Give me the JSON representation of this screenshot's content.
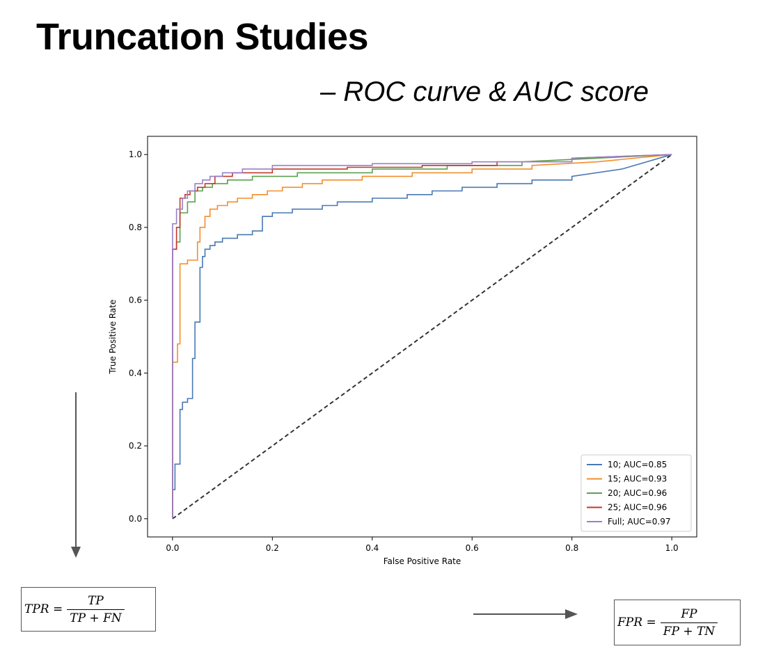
{
  "slide": {
    "title": "Truncation Studies",
    "subtitle": "– ROC curve & AUC score"
  },
  "formulas": {
    "tpr": {
      "lhs": "TPR =",
      "numerator": "TP",
      "denominator": "TP + FN"
    },
    "fpr": {
      "lhs": "FPR =",
      "numerator": "FP",
      "denominator": "FP + TN"
    }
  },
  "chart_data": {
    "type": "line",
    "title": "",
    "xlabel": "False Positive Rate",
    "ylabel": "True Positive Rate",
    "xlim": [
      -0.05,
      1.05
    ],
    "ylim": [
      -0.05,
      1.05
    ],
    "xticks": [
      0.0,
      0.2,
      0.4,
      0.6,
      0.8,
      1.0
    ],
    "yticks": [
      0.0,
      0.2,
      0.4,
      0.6,
      0.8,
      1.0
    ],
    "xtick_labels": [
      "0.0",
      "0.2",
      "0.4",
      "0.6",
      "0.8",
      "1.0"
    ],
    "ytick_labels": [
      "0.0",
      "0.2",
      "0.4",
      "0.6",
      "0.8",
      "1.0"
    ],
    "grid": false,
    "legend_position": "lower-right",
    "diagonal": {
      "x": [
        0,
        1
      ],
      "y": [
        0,
        1
      ],
      "color": "#333333",
      "style": "dashed"
    },
    "series": [
      {
        "name": "10; AUC=0.85",
        "color": "#4878b4",
        "x": [
          0,
          0,
          0.005,
          0.005,
          0.015,
          0.015,
          0.02,
          0.02,
          0.03,
          0.03,
          0.04,
          0.04,
          0.045,
          0.045,
          0.055,
          0.055,
          0.06,
          0.06,
          0.065,
          0.065,
          0.075,
          0.075,
          0.085,
          0.085,
          0.1,
          0.1,
          0.13,
          0.13,
          0.16,
          0.16,
          0.18,
          0.18,
          0.2,
          0.2,
          0.24,
          0.24,
          0.3,
          0.3,
          0.33,
          0.33,
          0.4,
          0.4,
          0.47,
          0.47,
          0.52,
          0.52,
          0.58,
          0.58,
          0.65,
          0.65,
          0.72,
          0.72,
          0.8,
          0.8,
          0.9,
          1.0
        ],
        "y": [
          0,
          0.08,
          0.08,
          0.15,
          0.15,
          0.3,
          0.3,
          0.32,
          0.32,
          0.33,
          0.33,
          0.44,
          0.44,
          0.54,
          0.54,
          0.69,
          0.69,
          0.72,
          0.72,
          0.74,
          0.74,
          0.75,
          0.75,
          0.76,
          0.76,
          0.77,
          0.77,
          0.78,
          0.78,
          0.79,
          0.79,
          0.83,
          0.83,
          0.84,
          0.84,
          0.85,
          0.85,
          0.86,
          0.86,
          0.87,
          0.87,
          0.88,
          0.88,
          0.89,
          0.89,
          0.9,
          0.9,
          0.91,
          0.91,
          0.92,
          0.92,
          0.93,
          0.93,
          0.94,
          0.96,
          1.0
        ]
      },
      {
        "name": "15; AUC=0.93",
        "color": "#f28e2b",
        "x": [
          0,
          0,
          0.01,
          0.01,
          0.015,
          0.015,
          0.03,
          0.03,
          0.05,
          0.05,
          0.055,
          0.055,
          0.065,
          0.065,
          0.075,
          0.075,
          0.09,
          0.09,
          0.11,
          0.11,
          0.13,
          0.13,
          0.16,
          0.16,
          0.19,
          0.19,
          0.22,
          0.22,
          0.26,
          0.26,
          0.3,
          0.3,
          0.38,
          0.38,
          0.48,
          0.48,
          0.6,
          0.6,
          0.72,
          0.72,
          0.85,
          1.0
        ],
        "y": [
          0,
          0.43,
          0.43,
          0.48,
          0.48,
          0.7,
          0.7,
          0.71,
          0.71,
          0.76,
          0.76,
          0.8,
          0.8,
          0.83,
          0.83,
          0.85,
          0.85,
          0.86,
          0.86,
          0.87,
          0.87,
          0.88,
          0.88,
          0.89,
          0.89,
          0.9,
          0.9,
          0.91,
          0.91,
          0.92,
          0.92,
          0.93,
          0.93,
          0.94,
          0.94,
          0.95,
          0.95,
          0.96,
          0.96,
          0.97,
          0.98,
          1.0
        ]
      },
      {
        "name": "20; AUC=0.96",
        "color": "#59a14f",
        "x": [
          0,
          0,
          0.008,
          0.008,
          0.015,
          0.015,
          0.03,
          0.03,
          0.045,
          0.045,
          0.06,
          0.06,
          0.08,
          0.08,
          0.11,
          0.11,
          0.16,
          0.16,
          0.25,
          0.25,
          0.4,
          0.4,
          0.55,
          0.55,
          0.7,
          0.7,
          0.85,
          1.0
        ],
        "y": [
          0,
          0.74,
          0.74,
          0.76,
          0.76,
          0.84,
          0.84,
          0.87,
          0.87,
          0.9,
          0.9,
          0.91,
          0.91,
          0.92,
          0.92,
          0.93,
          0.93,
          0.94,
          0.94,
          0.95,
          0.95,
          0.96,
          0.96,
          0.97,
          0.97,
          0.98,
          0.99,
          1.0
        ]
      },
      {
        "name": "25; AUC=0.96",
        "color": "#c0392b",
        "x": [
          0,
          0,
          0.008,
          0.008,
          0.015,
          0.015,
          0.025,
          0.025,
          0.035,
          0.035,
          0.05,
          0.05,
          0.065,
          0.065,
          0.085,
          0.085,
          0.12,
          0.12,
          0.2,
          0.2,
          0.35,
          0.35,
          0.5,
          0.5,
          0.65,
          0.65,
          0.8,
          0.8,
          1.0
        ],
        "y": [
          0,
          0.74,
          0.74,
          0.8,
          0.8,
          0.88,
          0.88,
          0.89,
          0.89,
          0.9,
          0.9,
          0.91,
          0.91,
          0.92,
          0.92,
          0.94,
          0.94,
          0.95,
          0.95,
          0.96,
          0.96,
          0.965,
          0.965,
          0.97,
          0.97,
          0.98,
          0.98,
          0.99,
          1.0
        ]
      },
      {
        "name": "Full; AUC=0.97",
        "color": "#9b7fc7",
        "x": [
          0,
          0,
          0.008,
          0.008,
          0.02,
          0.02,
          0.03,
          0.03,
          0.045,
          0.045,
          0.06,
          0.06,
          0.075,
          0.075,
          0.1,
          0.1,
          0.14,
          0.14,
          0.2,
          0.2,
          0.4,
          0.4,
          0.6,
          0.6,
          0.8,
          0.8,
          1.0
        ],
        "y": [
          0,
          0.81,
          0.81,
          0.85,
          0.85,
          0.88,
          0.88,
          0.9,
          0.9,
          0.92,
          0.92,
          0.93,
          0.93,
          0.94,
          0.94,
          0.95,
          0.95,
          0.96,
          0.96,
          0.97,
          0.97,
          0.975,
          0.975,
          0.98,
          0.98,
          0.99,
          1.0
        ]
      }
    ]
  }
}
